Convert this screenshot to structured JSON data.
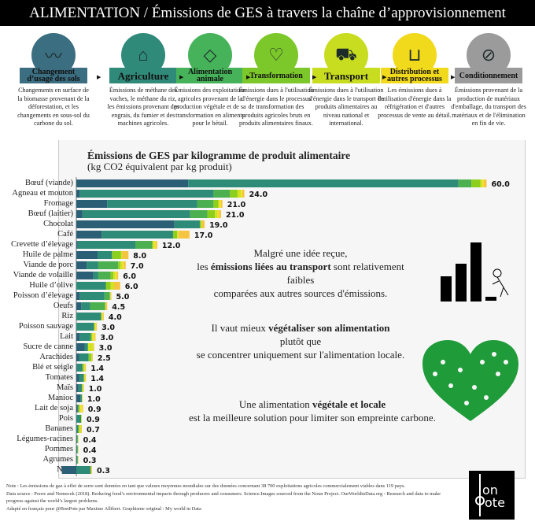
{
  "header": {
    "title": "ALIMENTATION / Émissions de GES à travers la chaîne d’approvisionnement"
  },
  "steps": [
    {
      "label": "Changement d’usage des sols",
      "color": "#3b6e80",
      "icon": "farmland-icon",
      "desc": "Changements en surface de la biomasse provenant de la déforestation, et les changements en sous-sol du carbone du sol."
    },
    {
      "label": "Agriculture",
      "color": "#2f8a7a",
      "icon": "barn-icon",
      "desc": "Émissions de méthane des vaches, le méthane du riz, les émissions provenant des engrais, du fumier et des machines agricoles."
    },
    {
      "label": "Alimentation animale",
      "color": "#46b35a",
      "icon": "feed-bag-icon",
      "desc": "Émissions des exploitations agricoles provenant de la production végétale et de sa transformation en aliments pour le bétail."
    },
    {
      "label": "Transformation",
      "color": "#7cc82a",
      "icon": "cutting-board-icon",
      "desc": "Émissions dues à l'utilisation d'énergie dans le processus de transformation des produits agricoles bruts en produits alimentaires finaux."
    },
    {
      "label": "Transport",
      "color": "#c8dd1f",
      "icon": "truck-icon",
      "desc": "Émissions dues à l'utilisation d'énergie dans le transport de produits alimentaires au niveau national et international."
    },
    {
      "label": "Distribution et autres processus",
      "color": "#f1d91b",
      "icon": "basket-icon",
      "desc": "Les émissions dues à l'utilisation d'énergie dans la réfrigération et d'autres processus de vente au détail."
    },
    {
      "label": "Conditionnement",
      "color": "#9b9b9b",
      "icon": "package-icon",
      "desc": "Émissions provenant de la production de matériaux d'emballage, du transport des matériaux et de l'élimination en fin de vie."
    }
  ],
  "chart_data": {
    "type": "bar",
    "orientation": "horizontal",
    "stacked": true,
    "title": "Émissions de GES par kilogramme de produit alimentaire",
    "subtitle": "(kg CO2 équivalent par kg produit)",
    "series_colors": [
      "#2b5f75",
      "#2e8b77",
      "#4caf50",
      "#8ccf1f",
      "#d3e21e",
      "#f3e02a",
      "#f5c542"
    ],
    "categories": [
      "Bœuf (viande)",
      "Agneau et mouton",
      "Fromage",
      "Bœuf (laitier)",
      "Chocolat",
      "Café",
      "Crevette d’élevage",
      "Huile de palme",
      "Viande de porc",
      "Viande de volaille",
      "Huile d’olive",
      "Poisson d’élevage",
      "Oeufs",
      "Riz",
      "Poisson sauvage",
      "Lait",
      "Sucre de canne",
      "Arachides",
      "Blé et seigle",
      "Tomates",
      "Maïs",
      "Manioc",
      "Lait de soja",
      "Pois",
      "Bananes",
      "Légumes-racines",
      "Pommes",
      "Agrumes",
      "Noix"
    ],
    "labels": [
      "60.0",
      "24.0",
      "21.0",
      "21.0",
      "19.0",
      "17.0",
      "12.0",
      "8.0",
      "7.0",
      "6.0",
      "6.0",
      "5.0",
      "4.5",
      "4.0",
      "3.0",
      "3.0",
      "3.0",
      "2.5",
      "1.4",
      "1.4",
      "1.0",
      "1.0",
      "0.9",
      "0.9",
      "0.7",
      "0.4",
      "0.4",
      "0.3",
      "0.3"
    ],
    "segments": [
      [
        16.3,
        39.4,
        1.9,
        1.3,
        0.3,
        0.2,
        0.4
      ],
      [
        0.5,
        19.5,
        2.4,
        1.1,
        0.5,
        0.2,
        0.3
      ],
      [
        4.5,
        13.1,
        2.4,
        0.7,
        0.1,
        0.3,
        0.2
      ],
      [
        0.9,
        15.7,
        2.5,
        1.1,
        0.4,
        0.2,
        0.3
      ],
      [
        14.3,
        3.7,
        0,
        0.2,
        0.1,
        0,
        0.4
      ],
      [
        3.7,
        10.4,
        0,
        0.6,
        0.1,
        0.1,
        1.6
      ],
      [
        0.2,
        8.4,
        2.5,
        0,
        0.2,
        0.3,
        0.2
      ],
      [
        3.1,
        2.1,
        0,
        1.3,
        0.2,
        0,
        0.9
      ],
      [
        1.5,
        1.7,
        2.9,
        0.3,
        0.3,
        0.2,
        0.3
      ],
      [
        2.5,
        0.7,
        1.8,
        0.4,
        0.3,
        0.2,
        0.2
      ],
      [
        0,
        4.3,
        0,
        0.7,
        0.5,
        0,
        0.9
      ],
      [
        0.5,
        3.6,
        0.8,
        0,
        0.1,
        0,
        0.1
      ],
      [
        0.7,
        1.3,
        2.2,
        0,
        0.1,
        0,
        0.2
      ],
      [
        0,
        3.6,
        0,
        0.1,
        0.1,
        0.1,
        0.1
      ],
      [
        0,
        2.6,
        0,
        0,
        0.2,
        0.1,
        0.1
      ],
      [
        0.5,
        1.5,
        0.2,
        0.1,
        0.1,
        0.3,
        0.1
      ],
      [
        1.2,
        0.5,
        0,
        0,
        0.8,
        0,
        0.1
      ],
      [
        0.4,
        1.4,
        0,
        0.4,
        0.1,
        0,
        0.1
      ],
      [
        0.1,
        0.8,
        0,
        0.2,
        0.1,
        0.1,
        0.1
      ],
      [
        0.4,
        0.7,
        0,
        0,
        0.2,
        0,
        0.1
      ],
      [
        0.3,
        0.5,
        0,
        0.1,
        0.1,
        0,
        0.1
      ],
      [
        0.6,
        0.2,
        0,
        0,
        0.1,
        0,
        0
      ],
      [
        0.2,
        0.1,
        0,
        0.2,
        0.1,
        0.3,
        0.1
      ],
      [
        0,
        0.7,
        0,
        0,
        0.1,
        0,
        0
      ],
      [
        0,
        0.3,
        0,
        0.1,
        0.3,
        0,
        0.1
      ],
      [
        0,
        0.2,
        0,
        0,
        0.1,
        0,
        0
      ],
      [
        0,
        0.2,
        0,
        0,
        0.1,
        0,
        0
      ],
      [
        0,
        0.2,
        0,
        0,
        0.1,
        0,
        0
      ],
      [
        -2.1,
        2.1,
        0,
        0,
        0.1,
        0,
        0.1
      ]
    ]
  },
  "messages": {
    "m1_l1": "Malgré une idée reçue,",
    "m1_l2a": "les ",
    "m1_l2b": "émissions liées au transport",
    "m1_l2c": " sont relativement faibles",
    "m1_l3": "comparées aux autres sources d'émissions.",
    "m2_l1a": "Il vaut mieux ",
    "m2_l1b": "végétaliser son alimentation",
    "m2_l2": "plutôt que",
    "m2_l3": "se concentrer uniquement sur l'alimentation locale.",
    "m3_l1a": "Une alimentation ",
    "m3_l1b": "végétale et locale",
    "m3_l2": "est la meilleure solution pour limiter son empreinte carbone."
  },
  "footer": {
    "note": "Note : Les émissions de gaz à effet de serre sont données en tant que valeurs moyennes mondiales sur des données concernant 38 700 exploitations agricoles commercialement viables dans 119 pays.",
    "source": "Data source : Poore and Nemecek (2018). Reducing food’s environmental impacts through producers and consumers. Science.Images sourced from the Noun Project. OurWorldinData.org - Research and data to make progress against the world’s largest problems.",
    "credit": "Adapté en français pour @BonPote par Maxime Allibert. Graphisme original : My world in Data",
    "logo": "bon pote"
  }
}
